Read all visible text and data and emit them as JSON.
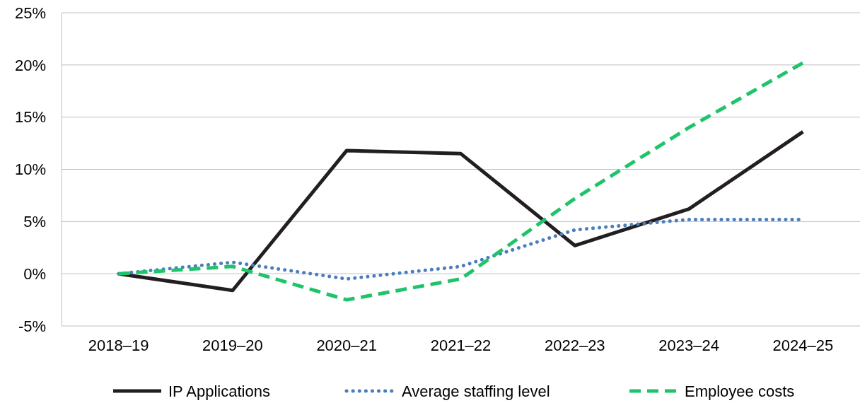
{
  "chart_data": {
    "type": "line",
    "categories": [
      "2018–19",
      "2019–20",
      "2020–21",
      "2021–22",
      "2022–23",
      "2023–24",
      "2024–25"
    ],
    "series": [
      {
        "name": "IP Applications",
        "color": "#231f20",
        "line_style": "solid",
        "values": [
          0,
          -1.6,
          11.8,
          11.5,
          2.7,
          6.2,
          13.6
        ]
      },
      {
        "name": "Average staffing level",
        "color": "#4a7ebb",
        "line_style": "dotted",
        "values": [
          0,
          1.1,
          -0.5,
          0.7,
          4.2,
          5.2,
          5.2
        ]
      },
      {
        "name": "Employee costs",
        "color": "#1fc46a",
        "line_style": "dashed",
        "values": [
          0,
          0.7,
          -2.5,
          -0.5,
          7.2,
          14.0,
          20.2
        ]
      }
    ],
    "ylim": [
      -5,
      25
    ],
    "yticks": [
      {
        "value": -5,
        "label": "-5%"
      },
      {
        "value": 0,
        "label": "0%"
      },
      {
        "value": 5,
        "label": "5%"
      },
      {
        "value": 10,
        "label": "10%"
      },
      {
        "value": 15,
        "label": "15%"
      },
      {
        "value": 20,
        "label": "20%"
      },
      {
        "value": 25,
        "label": "25%"
      }
    ],
    "grid": "y",
    "legend": "bottom",
    "marker": "none"
  }
}
